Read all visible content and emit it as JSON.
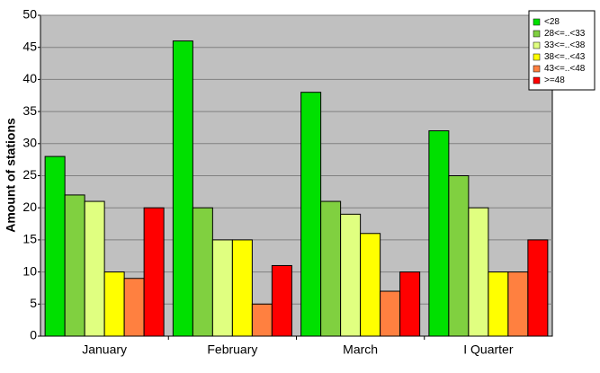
{
  "chart_data": {
    "type": "bar",
    "y_label": "Amount of stations",
    "categories": [
      "January",
      "February",
      "March",
      "I Quarter"
    ],
    "series": [
      {
        "name": "<28",
        "color": "#00e000",
        "values": [
          28,
          46,
          38,
          32
        ]
      },
      {
        "name": "28<=..<33",
        "color": "#80d040",
        "values": [
          22,
          20,
          21,
          25
        ]
      },
      {
        "name": "33<=..<38",
        "color": "#e0ff80",
        "values": [
          21,
          15,
          19,
          20
        ]
      },
      {
        "name": "38<=..<43",
        "color": "#ffff00",
        "values": [
          10,
          15,
          16,
          10
        ]
      },
      {
        "name": "43<=..<48",
        "color": "#ff8040",
        "values": [
          9,
          5,
          7,
          10
        ]
      },
      {
        "name": ">=48",
        "color": "#ff0000",
        "values": [
          20,
          11,
          10,
          15
        ]
      }
    ],
    "ylim": [
      0,
      50
    ],
    "yticks": [
      0,
      5,
      10,
      15,
      20,
      25,
      30,
      35,
      40,
      45,
      50
    ],
    "grid": true,
    "legend": "top-right"
  }
}
